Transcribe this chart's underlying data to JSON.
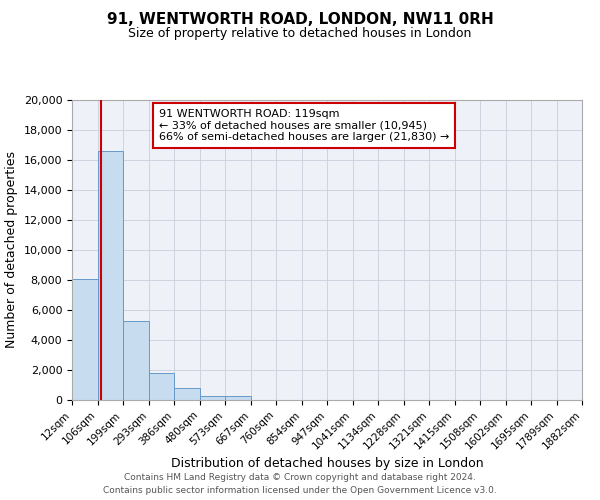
{
  "title": "91, WENTWORTH ROAD, LONDON, NW11 0RH",
  "subtitle": "Size of property relative to detached houses in London",
  "xlabel": "Distribution of detached houses by size in London",
  "ylabel": "Number of detached properties",
  "footer_line1": "Contains HM Land Registry data © Crown copyright and database right 2024.",
  "footer_line2": "Contains public sector information licensed under the Open Government Licence v3.0.",
  "bin_labels": [
    "12sqm",
    "106sqm",
    "199sqm",
    "293sqm",
    "386sqm",
    "480sqm",
    "573sqm",
    "667sqm",
    "760sqm",
    "854sqm",
    "947sqm",
    "1041sqm",
    "1134sqm",
    "1228sqm",
    "1321sqm",
    "1415sqm",
    "1508sqm",
    "1602sqm",
    "1695sqm",
    "1789sqm",
    "1882sqm"
  ],
  "bar_values": [
    8100,
    16600,
    5300,
    1800,
    800,
    300,
    280,
    0,
    0,
    0,
    0,
    0,
    0,
    0,
    0,
    0,
    0,
    0,
    0,
    0
  ],
  "bar_color": "#c8dcf0",
  "bar_edge_color": "#6699cc",
  "ylim": [
    0,
    20000
  ],
  "yticks": [
    0,
    2000,
    4000,
    6000,
    8000,
    10000,
    12000,
    14000,
    16000,
    18000,
    20000
  ],
  "property_line_x": 119,
  "property_line_color": "#cc0000",
  "annotation_title": "91 WENTWORTH ROAD: 119sqm",
  "annotation_line1": "← 33% of detached houses are smaller (10,945)",
  "annotation_line2": "66% of semi-detached houses are larger (21,830) →",
  "grid_color": "#c8d0dc",
  "background_color": "#ffffff",
  "plot_bg_color": "#eef2f8"
}
